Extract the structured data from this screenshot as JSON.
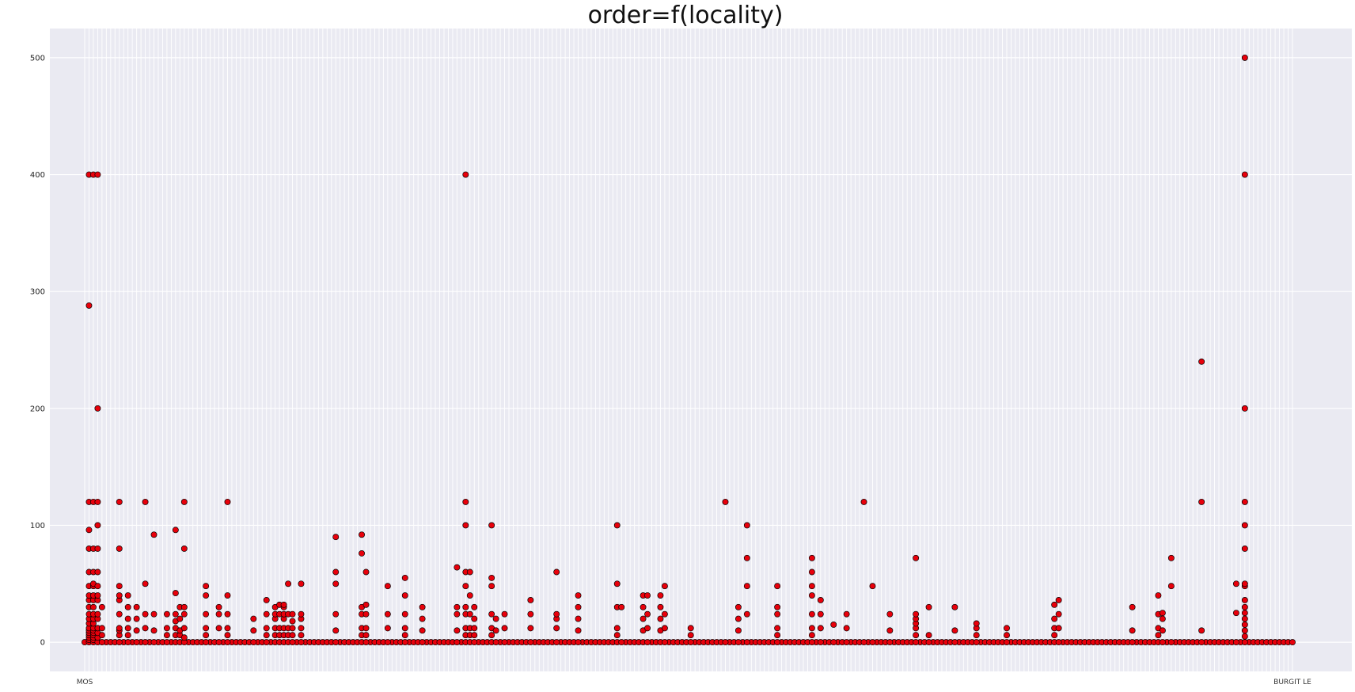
{
  "chart_data": {
    "type": "scatter",
    "title": "order=f(locality)",
    "xlabel": "",
    "ylabel": "",
    "n_categories": 280,
    "x_tick_labels": [
      {
        "text": "MOS",
        "index": 0
      },
      {
        "text": "BURGIT LE",
        "index": 279
      }
    ],
    "ylim": [
      -25,
      525
    ],
    "yticks": [
      0,
      100,
      200,
      300,
      400,
      500
    ],
    "grid": true,
    "style": {
      "background": "#eaeaf2",
      "grid_color": "#ffffff",
      "marker_fill": "#e8000b",
      "marker_edge": "#000000"
    },
    "series": [
      {
        "x_index": 0,
        "values": [
          0
        ]
      },
      {
        "x_index": 1,
        "values": [
          0,
          2,
          4,
          6,
          8,
          10,
          12,
          16,
          20,
          24,
          30,
          36,
          40,
          48,
          60,
          80,
          96,
          120,
          288,
          400
        ]
      },
      {
        "x_index": 2,
        "values": [
          0,
          2,
          4,
          6,
          8,
          10,
          12,
          16,
          20,
          24,
          30,
          36,
          40,
          48,
          50,
          60,
          80,
          120,
          400
        ]
      },
      {
        "x_index": 3,
        "values": [
          0,
          4,
          8,
          12,
          20,
          24,
          36,
          40,
          48,
          60,
          80,
          100,
          120,
          200,
          400
        ]
      },
      {
        "x_index": 4,
        "values": [
          0,
          6,
          12,
          30
        ]
      },
      {
        "x_index": 8,
        "values": [
          0,
          6,
          10,
          12,
          24,
          36,
          40,
          48,
          80,
          120
        ]
      },
      {
        "x_index": 10,
        "values": [
          0,
          6,
          12,
          20,
          30,
          40
        ]
      },
      {
        "x_index": 12,
        "values": [
          0,
          10,
          20,
          30
        ]
      },
      {
        "x_index": 14,
        "values": [
          0,
          12,
          24,
          50,
          120
        ]
      },
      {
        "x_index": 16,
        "values": [
          0,
          10,
          24,
          92
        ]
      },
      {
        "x_index": 19,
        "values": [
          0,
          6,
          12,
          24
        ]
      },
      {
        "x_index": 21,
        "values": [
          0,
          6,
          12,
          18,
          24,
          42,
          96
        ]
      },
      {
        "x_index": 22,
        "values": [
          0,
          6,
          10,
          20,
          30
        ]
      },
      {
        "x_index": 23,
        "values": [
          0,
          4,
          12,
          24,
          30,
          80,
          120
        ]
      },
      {
        "x_index": 28,
        "values": [
          0,
          6,
          12,
          24,
          40,
          48
        ]
      },
      {
        "x_index": 31,
        "values": [
          0,
          12,
          24,
          30
        ]
      },
      {
        "x_index": 33,
        "values": [
          0,
          6,
          12,
          24,
          40,
          120
        ]
      },
      {
        "x_index": 39,
        "values": [
          0,
          10,
          20
        ]
      },
      {
        "x_index": 42,
        "values": [
          0,
          6,
          12,
          24,
          36
        ]
      },
      {
        "x_index": 44,
        "values": [
          0,
          6,
          12,
          20,
          24,
          30
        ]
      },
      {
        "x_index": 45,
        "values": [
          0,
          6,
          12,
          24,
          32
        ]
      },
      {
        "x_index": 46,
        "values": [
          0,
          6,
          12,
          20,
          24,
          30,
          32
        ]
      },
      {
        "x_index": 47,
        "values": [
          0,
          6,
          12,
          24,
          50
        ]
      },
      {
        "x_index": 48,
        "values": [
          0,
          6,
          12,
          18,
          24
        ]
      },
      {
        "x_index": 50,
        "values": [
          0,
          6,
          12,
          20,
          24,
          50
        ]
      },
      {
        "x_index": 58,
        "values": [
          0,
          10,
          24,
          50,
          60,
          90
        ]
      },
      {
        "x_index": 64,
        "values": [
          0,
          6,
          12,
          24,
          30,
          76,
          92
        ]
      },
      {
        "x_index": 65,
        "values": [
          0,
          6,
          12,
          24,
          32,
          60
        ]
      },
      {
        "x_index": 70,
        "values": [
          0,
          12,
          24,
          48
        ]
      },
      {
        "x_index": 74,
        "values": [
          0,
          6,
          12,
          24,
          40,
          55
        ]
      },
      {
        "x_index": 78,
        "values": [
          0,
          10,
          20,
          30
        ]
      },
      {
        "x_index": 86,
        "values": [
          0,
          10,
          24,
          30,
          64
        ]
      },
      {
        "x_index": 88,
        "values": [
          0,
          6,
          12,
          24,
          30,
          48,
          60,
          100,
          120,
          400
        ]
      },
      {
        "x_index": 89,
        "values": [
          0,
          6,
          12,
          24,
          40,
          60
        ]
      },
      {
        "x_index": 90,
        "values": [
          0,
          6,
          12,
          20,
          30
        ]
      },
      {
        "x_index": 94,
        "values": [
          0,
          6,
          12,
          24,
          48,
          55,
          100
        ]
      },
      {
        "x_index": 95,
        "values": [
          0,
          10,
          20
        ]
      },
      {
        "x_index": 97,
        "values": [
          0,
          12,
          24
        ]
      },
      {
        "x_index": 103,
        "values": [
          0,
          12,
          24,
          36
        ]
      },
      {
        "x_index": 109,
        "values": [
          0,
          12,
          20,
          24,
          60
        ]
      },
      {
        "x_index": 114,
        "values": [
          0,
          10,
          20,
          30,
          40
        ]
      },
      {
        "x_index": 123,
        "values": [
          0,
          6,
          12,
          30,
          50,
          100
        ]
      },
      {
        "x_index": 124,
        "values": [
          0,
          30
        ]
      },
      {
        "x_index": 129,
        "values": [
          0,
          10,
          20,
          30,
          40
        ]
      },
      {
        "x_index": 130,
        "values": [
          0,
          12,
          24,
          40
        ]
      },
      {
        "x_index": 133,
        "values": [
          0,
          10,
          20,
          30,
          40
        ]
      },
      {
        "x_index": 134,
        "values": [
          0,
          12,
          24,
          48
        ]
      },
      {
        "x_index": 140,
        "values": [
          0,
          6,
          12
        ]
      },
      {
        "x_index": 148,
        "values": [
          0,
          120
        ]
      },
      {
        "x_index": 151,
        "values": [
          0,
          10,
          20,
          30
        ]
      },
      {
        "x_index": 153,
        "values": [
          0,
          24,
          48,
          72,
          100
        ]
      },
      {
        "x_index": 160,
        "values": [
          0,
          6,
          12,
          24,
          30,
          48
        ]
      },
      {
        "x_index": 168,
        "values": [
          0,
          6,
          12,
          24,
          40,
          48,
          60,
          72
        ]
      },
      {
        "x_index": 170,
        "values": [
          0,
          12,
          24,
          36
        ]
      },
      {
        "x_index": 173,
        "values": [
          0,
          15
        ]
      },
      {
        "x_index": 176,
        "values": [
          0,
          12,
          24
        ]
      },
      {
        "x_index": 180,
        "values": [
          0,
          120
        ]
      },
      {
        "x_index": 182,
        "values": [
          0,
          48
        ]
      },
      {
        "x_index": 186,
        "values": [
          0,
          10,
          24
        ]
      },
      {
        "x_index": 192,
        "values": [
          0,
          6,
          12,
          16,
          20,
          24,
          72
        ]
      },
      {
        "x_index": 195,
        "values": [
          0,
          6,
          30
        ]
      },
      {
        "x_index": 201,
        "values": [
          0,
          10,
          30
        ]
      },
      {
        "x_index": 206,
        "values": [
          0,
          6,
          12,
          16
        ]
      },
      {
        "x_index": 213,
        "values": [
          0,
          6,
          12
        ]
      },
      {
        "x_index": 224,
        "values": [
          0,
          6,
          12,
          20,
          32
        ]
      },
      {
        "x_index": 225,
        "values": [
          0,
          12,
          24,
          36
        ]
      },
      {
        "x_index": 242,
        "values": [
          0,
          10,
          30
        ]
      },
      {
        "x_index": 248,
        "values": [
          0,
          6,
          12,
          24,
          40
        ]
      },
      {
        "x_index": 249,
        "values": [
          0,
          10,
          20,
          25
        ]
      },
      {
        "x_index": 251,
        "values": [
          0,
          48,
          72
        ]
      },
      {
        "x_index": 258,
        "values": [
          0,
          10,
          120,
          240
        ]
      },
      {
        "x_index": 266,
        "values": [
          0,
          25,
          50
        ]
      },
      {
        "x_index": 268,
        "values": [
          0,
          5,
          10,
          15,
          20,
          25,
          30,
          36,
          48,
          50,
          80,
          100,
          120,
          200,
          400,
          500
        ]
      }
    ]
  }
}
